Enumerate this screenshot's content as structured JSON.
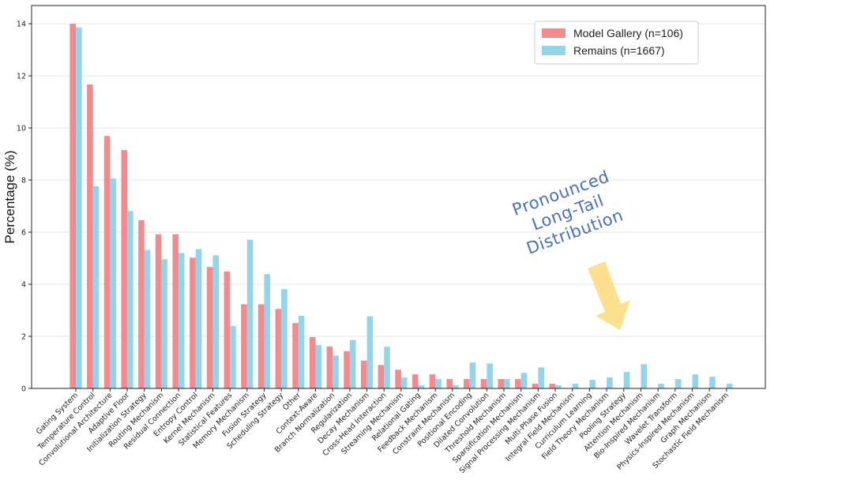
{
  "chart_data": {
    "type": "bar",
    "title": "",
    "xlabel": "",
    "ylabel": "Percentage (%)",
    "ylim": [
      0,
      14.7
    ],
    "yticks": [
      0,
      2,
      4,
      6,
      8,
      10,
      12,
      14
    ],
    "grid": true,
    "legend_position": "top-right",
    "categories": [
      "Gating System",
      "Temperature Control",
      "Convolutional Architecture",
      "Adaptive Floor",
      "Initialization Strategy",
      "Routing Mechanism",
      "Residual Connection",
      "Entropy Control",
      "Kernel Mechanism",
      "Statistical Features",
      "Memory Mechanism",
      "Fusion Strategy",
      "Scheduling Strategy",
      "Other",
      "Context-Aware",
      "Branch Normalization",
      "Regularization",
      "Decay Mechanism",
      "Cross-Head Interaction",
      "Streaming Mechanism",
      "Relational Gating",
      "Feedback Mechanism",
      "Constraint Mechanism",
      "Positional Encoding",
      "Dilated Convolution",
      "Threshold Mechanism",
      "Sparsification Mechanism",
      "Signal Processing Mechanism",
      "Multi-Phase Fusion",
      "Integral Field Mechanism",
      "Curriculum Learning",
      "Field Theory Mechanism",
      "Pooling Strategy",
      "Attention Mechanism",
      "Bio-Inspired Mechanism",
      "Wavelet Transform",
      "Physics-Inspired Mechanism",
      "Graph Mechanism",
      "Stochastic Field Mechanism"
    ],
    "series": [
      {
        "name": "Model Gallery (n=106)",
        "color": "#f08c8f",
        "values": [
          14.0,
          11.67,
          9.69,
          9.15,
          6.46,
          5.92,
          5.92,
          5.02,
          4.66,
          4.49,
          3.23,
          3.23,
          3.05,
          2.51,
          1.97,
          1.61,
          1.43,
          1.07,
          0.9,
          0.72,
          0.54,
          0.54,
          0.36,
          0.36,
          0.36,
          0.36,
          0.36,
          0.18,
          0.18,
          0,
          0,
          0,
          0,
          0,
          0,
          0,
          0,
          0,
          0
        ]
      },
      {
        "name": "Remains (n=1667)",
        "color": "#94d4ea",
        "values": [
          13.86,
          7.77,
          8.06,
          6.81,
          5.32,
          4.96,
          5.2,
          5.35,
          5.11,
          2.4,
          5.71,
          4.39,
          3.81,
          2.79,
          1.67,
          1.26,
          1.86,
          2.77,
          1.6,
          0.42,
          0.12,
          0.36,
          0.12,
          0.99,
          0.96,
          0.36,
          0.6,
          0.81,
          0.12,
          0.18,
          0.33,
          0.42,
          0.63,
          0.93,
          0.18,
          0.36,
          0.54,
          0.45,
          0.18
        ]
      }
    ],
    "annotations": [
      {
        "text_lines": [
          "Pronounced",
          "Long-Tail",
          "Distribution"
        ],
        "color": "#4a6fbf",
        "arrow_color": "#fde08e"
      }
    ]
  }
}
